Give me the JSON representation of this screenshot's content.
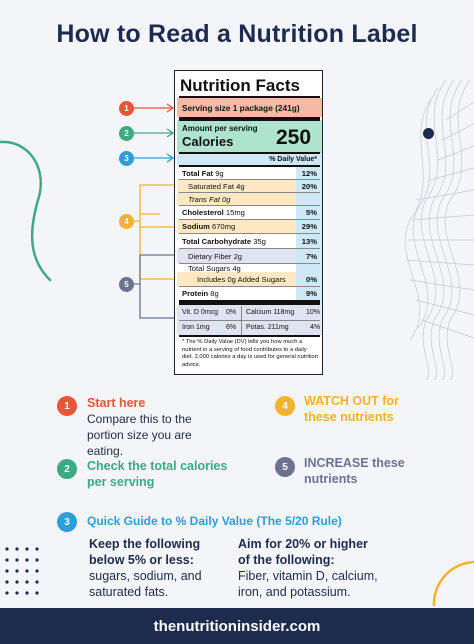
{
  "title": "How to Read a Nutrition Label",
  "colors": {
    "navy": "#1d2b4f",
    "red": "#e8563a",
    "green": "#3daa82",
    "blue": "#2d9fd8",
    "orange": "#f5b130",
    "slate": "#6b7391",
    "salmon_band": "#f7b9a6",
    "green_band": "#aee3cd",
    "blue_band": "#cfe8f6",
    "yellow_band": "#fde8c4",
    "lavender_band": "#dfe3f2"
  },
  "label": {
    "heading": "Nutrition Facts",
    "serving": "Serving size 1 package (241g)",
    "amount_per_serving": "Amount per serving",
    "calories_label": "Calories",
    "calories_value": "250",
    "dv_header": "% Daily Value*",
    "rows": {
      "total_fat": {
        "name": "Total Fat",
        "amount": "9g",
        "dv": "12%"
      },
      "saturated_fat": {
        "name": "Saturated Fat 4g",
        "dv": "20%"
      },
      "trans_fat": {
        "name": "Trans Fat 0g"
      },
      "cholesterol": {
        "name": "Cholesterol",
        "amount": "15mg",
        "dv": "5%"
      },
      "sodium": {
        "name": "Sodium",
        "amount": "670mg",
        "dv": "29%"
      },
      "total_carb": {
        "name": "Total Carbohydrate",
        "amount": "35g",
        "dv": "13%"
      },
      "fiber": {
        "name": "Dietary Fiber 2g",
        "dv": "7%"
      },
      "total_sugars": {
        "name": "Total Sugars 4g"
      },
      "added_sugars": {
        "name": "Includes 0g Added Sugars",
        "dv": "0%"
      },
      "protein": {
        "name": "Protein",
        "amount": "8g",
        "dv": "9%"
      }
    },
    "vitamins": {
      "vitd": "Vit. D 0mcg",
      "vitd_dv": "0%",
      "calcium": "Calcium 118mg",
      "calcium_dv": "10%",
      "iron": "Iron 1mg",
      "iron_dv": "6%",
      "potas": "Potas. 211mg",
      "potas_dv": "4%"
    },
    "footnote": "* The % Daily Value (DV) tells you how much a nutrient in a serving of food contributes to a daily diet. 2,000 calories a day is used for general nutrition advice."
  },
  "markers": [
    "1",
    "2",
    "3",
    "4",
    "5"
  ],
  "steps": {
    "s1": {
      "num": "1",
      "title": "Start here",
      "body": "Compare this to the portion size you are eating."
    },
    "s2": {
      "num": "2",
      "title": "Check the total calories per serving"
    },
    "s3": {
      "num": "3",
      "title": "Quick Guide to % Daily Value (The 5/20 Rule)"
    },
    "s4": {
      "num": "4",
      "title": "WATCH OUT for these  nutrients"
    },
    "s5": {
      "num": "5",
      "title": "INCREASE these nutrients"
    }
  },
  "rule": {
    "low_head": "Keep the following below 5% or less:",
    "low_body": "sugars, sodium, and saturated fats.",
    "high_head": "Aim for 20% or higher of the following:",
    "high_body": "Fiber, vitamin D, calcium, iron, and potassium."
  },
  "footer": "thenutritioninsider.com"
}
